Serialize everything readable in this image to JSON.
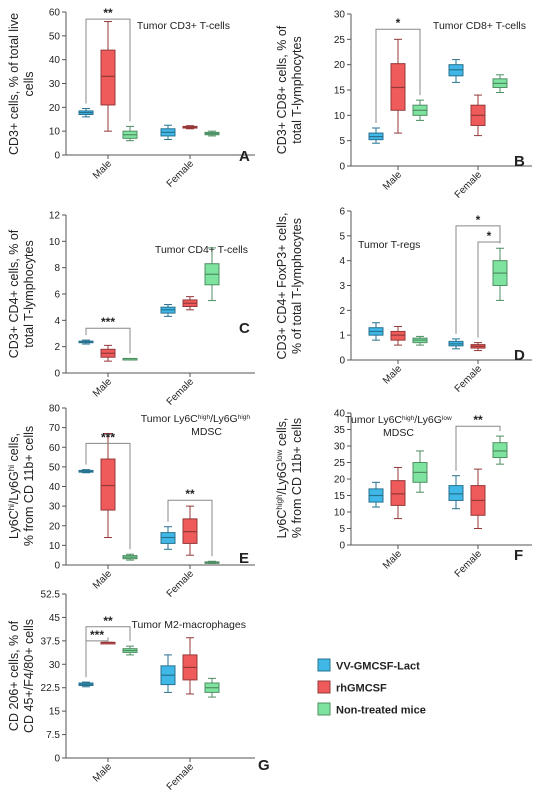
{
  "colors": {
    "VV-GMCSF-Lact": "#3fb8e8",
    "rhGMCSF": "#ef5a5a",
    "Non-treated mice": "#7fe3a0",
    "axis": "#555555",
    "bracket": "#888888"
  },
  "legend": {
    "items": [
      {
        "label": "VV-GMCSF-Lact",
        "series": "VV-GMCSF-Lact"
      },
      {
        "label": "rhGMCSF",
        "series": "rhGMCSF"
      },
      {
        "label": "Non-treated mice",
        "series": "Non-treated mice"
      }
    ]
  },
  "chart_data": [
    {
      "panel": "A",
      "type": "box",
      "title": "Tumor CD3+ T-cells",
      "ylabel": [
        "CD3+ cells, % of total live",
        "cells"
      ],
      "ylim": [
        0,
        60
      ],
      "yticks": [
        0,
        10,
        20,
        30,
        40,
        50,
        60
      ],
      "categories": [
        "Male",
        "Female"
      ],
      "series": [
        {
          "name": "VV-GMCSF-Lact",
          "boxes": [
            {
              "cat": "Male",
              "min": 16,
              "q1": 17,
              "median": 17.8,
              "q3": 18.5,
              "max": 19.5
            },
            {
              "cat": "Female",
              "min": 6.5,
              "q1": 8,
              "median": 9.5,
              "q3": 11,
              "max": 12.5
            }
          ]
        },
        {
          "name": "rhGMCSF",
          "boxes": [
            {
              "cat": "Male",
              "min": 10,
              "q1": 21,
              "median": 33,
              "q3": 44,
              "max": 56
            },
            {
              "cat": "Female",
              "min": 11,
              "q1": 11.3,
              "median": 11.6,
              "q3": 12,
              "max": 12.3
            }
          ]
        },
        {
          "name": "Non-treated mice",
          "boxes": [
            {
              "cat": "Male",
              "min": 6,
              "q1": 7,
              "median": 8.5,
              "q3": 10,
              "max": 12
            },
            {
              "cat": "Female",
              "min": 8,
              "q1": 8.5,
              "median": 9,
              "q3": 9.5,
              "max": 10
            }
          ]
        }
      ],
      "significance": [
        {
          "cat": "Male",
          "from": "VV-GMCSF-Lact",
          "to": "Non-treated mice",
          "label": "**",
          "y": 57
        }
      ]
    },
    {
      "panel": "B",
      "type": "box",
      "title": "Tumor CD8+ T-cells",
      "ylabel": [
        "CD3+ CD8+ cells, % of",
        "total T-lymphocytes"
      ],
      "ylim": [
        0,
        30
      ],
      "yticks": [
        0,
        5,
        10,
        15,
        20,
        25,
        30
      ],
      "categories": [
        "Male",
        "Female"
      ],
      "series": [
        {
          "name": "VV-GMCSF-Lact",
          "boxes": [
            {
              "cat": "Male",
              "min": 4.5,
              "q1": 5.2,
              "median": 5.8,
              "q3": 6.5,
              "max": 7.5
            },
            {
              "cat": "Female",
              "min": 16.5,
              "q1": 17.8,
              "median": 19,
              "q3": 20,
              "max": 21
            }
          ]
        },
        {
          "name": "rhGMCSF",
          "boxes": [
            {
              "cat": "Male",
              "min": 6.5,
              "q1": 11,
              "median": 15.5,
              "q3": 20.2,
              "max": 25
            },
            {
              "cat": "Female",
              "min": 6,
              "q1": 8,
              "median": 10,
              "q3": 12,
              "max": 14
            }
          ]
        },
        {
          "name": "Non-treated mice",
          "boxes": [
            {
              "cat": "Male",
              "min": 9,
              "q1": 10,
              "median": 11,
              "q3": 12,
              "max": 13
            },
            {
              "cat": "Female",
              "min": 14.5,
              "q1": 15.5,
              "median": 16.3,
              "q3": 17.2,
              "max": 18
            }
          ]
        }
      ],
      "significance": [
        {
          "cat": "Male",
          "from": "VV-GMCSF-Lact",
          "to": "Non-treated mice",
          "label": "*",
          "y": 27
        }
      ]
    },
    {
      "panel": "C",
      "type": "box",
      "title": "Tumor CD4+ T-cells",
      "ylabel": [
        "CD3+ CD4+ cells, % of",
        "total T-lymphocytes"
      ],
      "ylim": [
        0,
        12
      ],
      "yticks": [
        0,
        2,
        4,
        6,
        8,
        10,
        12
      ],
      "categories": [
        "Male",
        "Female"
      ],
      "series": [
        {
          "name": "VV-GMCSF-Lact",
          "boxes": [
            {
              "cat": "Male",
              "min": 2.2,
              "q1": 2.3,
              "median": 2.35,
              "q3": 2.42,
              "max": 2.5
            },
            {
              "cat": "Female",
              "min": 4.3,
              "q1": 4.55,
              "median": 4.8,
              "q3": 5,
              "max": 5.2
            }
          ]
        },
        {
          "name": "rhGMCSF",
          "boxes": [
            {
              "cat": "Male",
              "min": 0.9,
              "q1": 1.2,
              "median": 1.5,
              "q3": 1.8,
              "max": 2.1
            },
            {
              "cat": "Female",
              "min": 4.8,
              "q1": 5.05,
              "median": 5.3,
              "q3": 5.55,
              "max": 5.8
            }
          ]
        },
        {
          "name": "Non-treated mice",
          "boxes": [
            {
              "cat": "Male",
              "min": 1.1,
              "q1": 1.1,
              "median": 1.1,
              "q3": 1.1,
              "max": 1.1
            },
            {
              "cat": "Female",
              "min": 5.5,
              "q1": 6.7,
              "median": 7.5,
              "q3": 8.3,
              "max": 9.5
            }
          ]
        }
      ],
      "significance": [
        {
          "cat": "Male",
          "from": "VV-GMCSF-Lact",
          "to": "Non-treated mice",
          "label": "***",
          "y": 3.4
        }
      ]
    },
    {
      "panel": "D",
      "type": "box",
      "title": "Tumor T-regs",
      "ylabel": [
        "CD3+ CD4+ FoxP3+ cells,",
        "% of total T-lymphocytes"
      ],
      "ylim": [
        0,
        6
      ],
      "yticks": [
        0,
        1,
        2,
        3,
        4,
        5,
        6
      ],
      "categories": [
        "Male",
        "Female"
      ],
      "series": [
        {
          "name": "VV-GMCSF-Lact",
          "boxes": [
            {
              "cat": "Male",
              "min": 0.8,
              "q1": 1,
              "median": 1.15,
              "q3": 1.3,
              "max": 1.5
            },
            {
              "cat": "Female",
              "min": 0.45,
              "q1": 0.57,
              "median": 0.65,
              "q3": 0.75,
              "max": 0.85
            }
          ]
        },
        {
          "name": "rhGMCSF",
          "boxes": [
            {
              "cat": "Male",
              "min": 0.6,
              "q1": 0.8,
              "median": 1,
              "q3": 1.15,
              "max": 1.35
            },
            {
              "cat": "Female",
              "min": 0.38,
              "q1": 0.48,
              "median": 0.55,
              "q3": 0.62,
              "max": 0.7
            }
          ]
        },
        {
          "name": "Non-treated mice",
          "boxes": [
            {
              "cat": "Male",
              "min": 0.6,
              "q1": 0.7,
              "median": 0.8,
              "q3": 0.88,
              "max": 0.95
            },
            {
              "cat": "Female",
              "min": 2.4,
              "q1": 3,
              "median": 3.5,
              "q3": 4,
              "max": 4.5
            }
          ]
        }
      ],
      "significance": [
        {
          "cat": "Female",
          "from": "VV-GMCSF-Lact",
          "to": "Non-treated mice",
          "label": "*",
          "y": 5.4
        },
        {
          "cat": "Female",
          "from": "rhGMCSF",
          "to": "Non-treated mice",
          "label": "*",
          "y": 4.75
        }
      ]
    },
    {
      "panel": "E",
      "type": "box",
      "title_lines": [
        [
          {
            "t": "Tumor Ly6C"
          },
          {
            "t": "high",
            "sup": true
          },
          {
            "t": "/Ly6G"
          },
          {
            "t": "high",
            "sup": true
          }
        ],
        [
          {
            "t": "MDSC"
          }
        ]
      ],
      "ylabel_lines": [
        [
          {
            "t": "Ly6C"
          },
          {
            "t": "hi",
            "sup": true
          },
          {
            "t": "/Ly6G"
          },
          {
            "t": "hi",
            "sup": true
          },
          {
            "t": " cells,"
          }
        ],
        [
          {
            "t": "% from CD 11b+ cells"
          }
        ]
      ],
      "ylim": [
        0,
        80
      ],
      "yticks": [
        0,
        10,
        20,
        30,
        40,
        50,
        60,
        70,
        80
      ],
      "categories": [
        "Male",
        "Female"
      ],
      "series": [
        {
          "name": "VV-GMCSF-Lact",
          "boxes": [
            {
              "cat": "Male",
              "min": 47,
              "q1": 47.3,
              "median": 47.7,
              "q3": 48.2,
              "max": 48.6
            },
            {
              "cat": "Female",
              "min": 8,
              "q1": 11,
              "median": 14,
              "q3": 16.5,
              "max": 19.5
            }
          ]
        },
        {
          "name": "rhGMCSF",
          "boxes": [
            {
              "cat": "Male",
              "min": 14,
              "q1": 28,
              "median": 40.5,
              "q3": 54,
              "max": 67
            },
            {
              "cat": "Female",
              "min": 5,
              "q1": 11,
              "median": 17,
              "q3": 23.5,
              "max": 30
            }
          ]
        },
        {
          "name": "Non-treated mice",
          "boxes": [
            {
              "cat": "Male",
              "min": 2.5,
              "q1": 3.2,
              "median": 4,
              "q3": 4.8,
              "max": 5.5
            },
            {
              "cat": "Female",
              "min": 0.8,
              "q1": 1,
              "median": 1.3,
              "q3": 1.6,
              "max": 1.9
            }
          ]
        }
      ],
      "significance": [
        {
          "cat": "Male",
          "from": "VV-GMCSF-Lact",
          "to": "Non-treated mice",
          "label": "***",
          "y": 62
        },
        {
          "cat": "Female",
          "from": "VV-GMCSF-Lact",
          "to": "Non-treated mice",
          "label": "**",
          "y": 33
        }
      ]
    },
    {
      "panel": "F",
      "type": "box",
      "title_lines": [
        [
          {
            "t": "Tumor Ly6C"
          },
          {
            "t": "high",
            "sup": true
          },
          {
            "t": "/Ly6G"
          },
          {
            "t": "low",
            "sup": true
          }
        ],
        [
          {
            "t": "MDSC"
          }
        ]
      ],
      "ylabel_lines": [
        [
          {
            "t": "Ly6C"
          },
          {
            "t": "high",
            "sup": true
          },
          {
            "t": "/Ly6G"
          },
          {
            "t": "low",
            "sup": true
          },
          {
            "t": " cells,"
          }
        ],
        [
          {
            "t": "% from CD 11b+ cells"
          }
        ]
      ],
      "ylim": [
        0,
        40
      ],
      "yticks": [
        0,
        5,
        10,
        15,
        20,
        25,
        30,
        35,
        40
      ],
      "categories": [
        "Male",
        "Female"
      ],
      "series": [
        {
          "name": "VV-GMCSF-Lact",
          "boxes": [
            {
              "cat": "Male",
              "min": 11.5,
              "q1": 13,
              "median": 15,
              "q3": 17,
              "max": 19
            },
            {
              "cat": "Female",
              "min": 11,
              "q1": 13.5,
              "median": 15.5,
              "q3": 18,
              "max": 21
            }
          ]
        },
        {
          "name": "rhGMCSF",
          "boxes": [
            {
              "cat": "Male",
              "min": 8,
              "q1": 12,
              "median": 15.5,
              "q3": 19.5,
              "max": 23.5
            },
            {
              "cat": "Female",
              "min": 5,
              "q1": 9,
              "median": 13.5,
              "q3": 18,
              "max": 23
            }
          ]
        },
        {
          "name": "Non-treated mice",
          "boxes": [
            {
              "cat": "Male",
              "min": 16,
              "q1": 19,
              "median": 22,
              "q3": 25,
              "max": 28.5
            },
            {
              "cat": "Female",
              "min": 24.5,
              "q1": 26.5,
              "median": 28.5,
              "q3": 31,
              "max": 33
            }
          ]
        }
      ],
      "significance": [
        {
          "cat": "Female",
          "from": "VV-GMCSF-Lact",
          "to": "Non-treated mice",
          "label": "**",
          "y": 36
        }
      ]
    },
    {
      "panel": "G",
      "type": "box",
      "title": "Tumor M2-macrophages",
      "ylabel": [
        "CD 206+ cells, % of",
        "CD 45+/F4/80+ cells"
      ],
      "ylim": [
        0,
        52.5
      ],
      "yticks": [
        0,
        7.5,
        15,
        22.5,
        30,
        37.5,
        45,
        52.5
      ],
      "ytick_labels": [
        "0",
        "7.5",
        "15",
        "22.5",
        "30",
        "37.5",
        "45",
        "52.5"
      ],
      "categories": [
        "Male",
        "Female"
      ],
      "series": [
        {
          "name": "VV-GMCSF-Lact",
          "boxes": [
            {
              "cat": "Male",
              "min": 22.8,
              "q1": 23.2,
              "median": 23.6,
              "q3": 24,
              "max": 24.3
            },
            {
              "cat": "Female",
              "min": 21,
              "q1": 23.5,
              "median": 26.5,
              "q3": 29.5,
              "max": 33
            }
          ]
        },
        {
          "name": "rhGMCSF",
          "boxes": [
            {
              "cat": "Male",
              "min": 37,
              "q1": 37,
              "median": 37,
              "q3": 37,
              "max": 37
            },
            {
              "cat": "Female",
              "min": 20.5,
              "q1": 25,
              "median": 29,
              "q3": 33,
              "max": 38.5
            }
          ]
        },
        {
          "name": "Non-treated mice",
          "boxes": [
            {
              "cat": "Male",
              "min": 33,
              "q1": 33.8,
              "median": 34.4,
              "q3": 35,
              "max": 35.8
            },
            {
              "cat": "Female",
              "min": 19.5,
              "q1": 21,
              "median": 22.5,
              "q3": 24,
              "max": 25.5
            }
          ]
        }
      ],
      "significance": [
        {
          "cat": "Male",
          "from": "VV-GMCSF-Lact",
          "to": "rhGMCSF",
          "label": "***",
          "y": 37.5
        },
        {
          "cat": "Male",
          "from": "VV-GMCSF-Lact",
          "to": "Non-treated mice",
          "label": "**",
          "y": 42
        }
      ]
    }
  ]
}
